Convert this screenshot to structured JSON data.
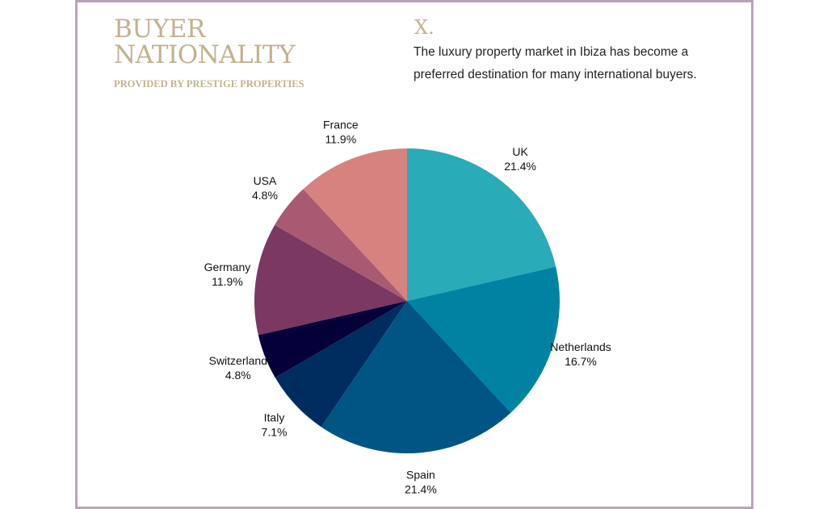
{
  "header": {
    "title_line1": "BUYER",
    "title_line2": "NATIONALITY",
    "subtitle": "PROVIDED BY PRESTIGE PROPERTIES",
    "mark": "X.",
    "description": "The luxury property market in Ibiza has become a preferred destination for many international buyers."
  },
  "chart_data": {
    "type": "pie",
    "start": "top",
    "direction": "clockwise",
    "categories": [
      "UK",
      "Netherlands",
      "Spain",
      "Italy",
      "Switzerland",
      "Germany",
      "USA",
      "France"
    ],
    "values": [
      21.4,
      16.7,
      21.4,
      7.1,
      4.8,
      11.9,
      4.8,
      11.9
    ],
    "labels": [
      "21.4%",
      "16.7%",
      "21.4%",
      "7.1%",
      "4.8%",
      "11.9%",
      "4.8%",
      "11.9%"
    ],
    "colors": [
      "#2aabb8",
      "#0083a3",
      "#005585",
      "#002d5f",
      "#060038",
      "#7a3863",
      "#a85a72",
      "#d68380"
    ]
  }
}
